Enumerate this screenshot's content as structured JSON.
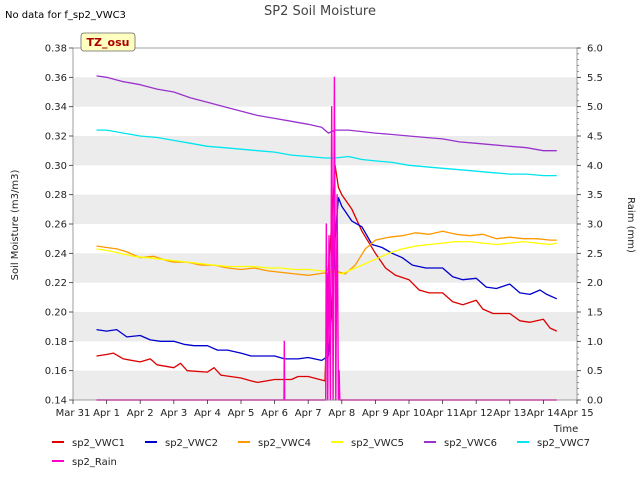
{
  "chart_data": {
    "type": "line",
    "title": "SP2 Soil Moisture",
    "note": "No data for f_sp2_VWC3",
    "badge": "TZ_osu",
    "xlabel": "Time",
    "ylabel": "Soil Moisture (m3/m3)",
    "y2label": "Raim (mm)",
    "x_ticks": [
      "Mar 31",
      "Apr 1",
      "Apr 2",
      "Apr 3",
      "Apr 4",
      "Apr 5",
      "Apr 6",
      "Apr 7",
      "Apr 8",
      "Apr 9",
      "Apr 10",
      "Apr 11",
      "Apr 12",
      "Apr 13",
      "Apr 14",
      "Apr 15"
    ],
    "xlim": [
      0,
      15
    ],
    "ylim": [
      0.14,
      0.38
    ],
    "y_ticks": [
      "0.14",
      "0.16",
      "0.18",
      "0.20",
      "0.22",
      "0.24",
      "0.26",
      "0.28",
      "0.30",
      "0.32",
      "0.34",
      "0.36",
      "0.38"
    ],
    "y2lim": [
      0.0,
      6.0
    ],
    "y2_ticks": [
      "0.0",
      "0.5",
      "1.0",
      "1.5",
      "2.0",
      "2.5",
      "3.0",
      "3.5",
      "4.0",
      "4.5",
      "5.0",
      "5.5",
      "6.0"
    ],
    "grid": "horizontal bands",
    "legend_position": "bottom",
    "series": [
      {
        "name": "sp2_VWC1",
        "color": "#dd0000",
        "axis": "left",
        "points": [
          [
            0.7,
            0.17
          ],
          [
            1.0,
            0.171
          ],
          [
            1.2,
            0.172
          ],
          [
            1.5,
            0.168
          ],
          [
            2.0,
            0.166
          ],
          [
            2.3,
            0.168
          ],
          [
            2.5,
            0.164
          ],
          [
            3.0,
            0.162
          ],
          [
            3.2,
            0.165
          ],
          [
            3.4,
            0.16
          ],
          [
            4.0,
            0.159
          ],
          [
            4.2,
            0.162
          ],
          [
            4.4,
            0.157
          ],
          [
            5.0,
            0.155
          ],
          [
            5.3,
            0.153
          ],
          [
            5.5,
            0.152
          ],
          [
            6.0,
            0.154
          ],
          [
            6.5,
            0.154
          ],
          [
            6.7,
            0.156
          ],
          [
            7.0,
            0.156
          ],
          [
            7.5,
            0.153
          ],
          [
            7.6,
            0.23
          ],
          [
            7.7,
            0.26
          ],
          [
            7.8,
            0.3
          ],
          [
            7.9,
            0.285
          ],
          [
            8.0,
            0.28
          ],
          [
            8.3,
            0.27
          ],
          [
            8.6,
            0.255
          ],
          [
            9.0,
            0.24
          ],
          [
            9.3,
            0.23
          ],
          [
            9.6,
            0.225
          ],
          [
            10.0,
            0.222
          ],
          [
            10.3,
            0.215
          ],
          [
            10.6,
            0.213
          ],
          [
            11.0,
            0.213
          ],
          [
            11.3,
            0.207
          ],
          [
            11.6,
            0.205
          ],
          [
            12.0,
            0.208
          ],
          [
            12.2,
            0.202
          ],
          [
            12.5,
            0.199
          ],
          [
            13.0,
            0.199
          ],
          [
            13.3,
            0.194
          ],
          [
            13.6,
            0.193
          ],
          [
            14.0,
            0.195
          ],
          [
            14.2,
            0.189
          ],
          [
            14.4,
            0.187
          ]
        ]
      },
      {
        "name": "sp2_VWC2",
        "color": "#0000cc",
        "axis": "left",
        "points": [
          [
            0.7,
            0.188
          ],
          [
            1.0,
            0.187
          ],
          [
            1.3,
            0.188
          ],
          [
            1.6,
            0.183
          ],
          [
            2.0,
            0.184
          ],
          [
            2.3,
            0.181
          ],
          [
            2.6,
            0.18
          ],
          [
            3.0,
            0.18
          ],
          [
            3.3,
            0.178
          ],
          [
            3.6,
            0.177
          ],
          [
            4.0,
            0.177
          ],
          [
            4.3,
            0.174
          ],
          [
            4.6,
            0.174
          ],
          [
            5.0,
            0.172
          ],
          [
            5.3,
            0.17
          ],
          [
            5.6,
            0.17
          ],
          [
            6.0,
            0.17
          ],
          [
            6.3,
            0.168
          ],
          [
            6.7,
            0.168
          ],
          [
            7.0,
            0.169
          ],
          [
            7.4,
            0.167
          ],
          [
            7.6,
            0.17
          ],
          [
            7.7,
            0.2
          ],
          [
            7.8,
            0.25
          ],
          [
            7.9,
            0.278
          ],
          [
            8.0,
            0.272
          ],
          [
            8.3,
            0.262
          ],
          [
            8.6,
            0.258
          ],
          [
            8.9,
            0.246
          ],
          [
            9.2,
            0.244
          ],
          [
            9.5,
            0.24
          ],
          [
            9.8,
            0.237
          ],
          [
            10.1,
            0.232
          ],
          [
            10.5,
            0.23
          ],
          [
            11.0,
            0.23
          ],
          [
            11.3,
            0.224
          ],
          [
            11.6,
            0.222
          ],
          [
            12.0,
            0.223
          ],
          [
            12.3,
            0.217
          ],
          [
            12.6,
            0.216
          ],
          [
            13.0,
            0.219
          ],
          [
            13.3,
            0.213
          ],
          [
            13.6,
            0.212
          ],
          [
            13.9,
            0.215
          ],
          [
            14.1,
            0.212
          ],
          [
            14.4,
            0.209
          ]
        ]
      },
      {
        "name": "sp2_VWC4",
        "color": "#ff9900",
        "axis": "left",
        "points": [
          [
            0.7,
            0.245
          ],
          [
            1.0,
            0.244
          ],
          [
            1.3,
            0.243
          ],
          [
            1.6,
            0.241
          ],
          [
            2.0,
            0.237
          ],
          [
            2.4,
            0.238
          ],
          [
            2.8,
            0.235
          ],
          [
            3.0,
            0.234
          ],
          [
            3.4,
            0.234
          ],
          [
            3.8,
            0.232
          ],
          [
            4.2,
            0.232
          ],
          [
            4.6,
            0.23
          ],
          [
            5.0,
            0.229
          ],
          [
            5.4,
            0.23
          ],
          [
            5.8,
            0.228
          ],
          [
            6.2,
            0.227
          ],
          [
            6.6,
            0.226
          ],
          [
            7.0,
            0.225
          ],
          [
            7.3,
            0.226
          ],
          [
            7.6,
            0.227
          ],
          [
            7.8,
            0.228
          ],
          [
            8.1,
            0.226
          ],
          [
            8.4,
            0.232
          ],
          [
            8.7,
            0.243
          ],
          [
            9.0,
            0.249
          ],
          [
            9.4,
            0.251
          ],
          [
            9.8,
            0.252
          ],
          [
            10.2,
            0.254
          ],
          [
            10.6,
            0.253
          ],
          [
            11.0,
            0.255
          ],
          [
            11.4,
            0.253
          ],
          [
            11.8,
            0.252
          ],
          [
            12.2,
            0.253
          ],
          [
            12.6,
            0.25
          ],
          [
            13.0,
            0.251
          ],
          [
            13.4,
            0.25
          ],
          [
            13.8,
            0.25
          ],
          [
            14.2,
            0.249
          ],
          [
            14.4,
            0.249
          ]
        ]
      },
      {
        "name": "sp2_VWC5",
        "color": "#ffff00",
        "axis": "left",
        "points": [
          [
            0.7,
            0.243
          ],
          [
            1.0,
            0.242
          ],
          [
            1.4,
            0.24
          ],
          [
            1.8,
            0.238
          ],
          [
            2.2,
            0.237
          ],
          [
            2.6,
            0.236
          ],
          [
            3.0,
            0.235
          ],
          [
            3.4,
            0.234
          ],
          [
            3.8,
            0.233
          ],
          [
            4.2,
            0.232
          ],
          [
            4.6,
            0.231
          ],
          [
            5.0,
            0.231
          ],
          [
            5.4,
            0.231
          ],
          [
            5.8,
            0.23
          ],
          [
            6.2,
            0.23
          ],
          [
            6.6,
            0.229
          ],
          [
            7.0,
            0.229
          ],
          [
            7.4,
            0.228
          ],
          [
            7.8,
            0.227
          ],
          [
            8.0,
            0.226
          ],
          [
            8.3,
            0.229
          ],
          [
            8.6,
            0.232
          ],
          [
            9.0,
            0.236
          ],
          [
            9.4,
            0.24
          ],
          [
            9.8,
            0.243
          ],
          [
            10.2,
            0.245
          ],
          [
            10.6,
            0.246
          ],
          [
            11.0,
            0.247
          ],
          [
            11.4,
            0.248
          ],
          [
            11.8,
            0.248
          ],
          [
            12.2,
            0.247
          ],
          [
            12.6,
            0.246
          ],
          [
            13.0,
            0.247
          ],
          [
            13.4,
            0.248
          ],
          [
            13.8,
            0.247
          ],
          [
            14.2,
            0.246
          ],
          [
            14.4,
            0.247
          ]
        ]
      },
      {
        "name": "sp2_VWC6",
        "color": "#9933cc",
        "axis": "left",
        "points": [
          [
            0.7,
            0.361
          ],
          [
            1.0,
            0.36
          ],
          [
            1.5,
            0.357
          ],
          [
            2.0,
            0.355
          ],
          [
            2.5,
            0.352
          ],
          [
            3.0,
            0.35
          ],
          [
            3.5,
            0.346
          ],
          [
            4.0,
            0.343
          ],
          [
            4.5,
            0.34
          ],
          [
            5.0,
            0.337
          ],
          [
            5.5,
            0.334
          ],
          [
            6.0,
            0.332
          ],
          [
            6.5,
            0.33
          ],
          [
            7.0,
            0.328
          ],
          [
            7.4,
            0.326
          ],
          [
            7.6,
            0.322
          ],
          [
            7.8,
            0.324
          ],
          [
            8.2,
            0.324
          ],
          [
            8.6,
            0.323
          ],
          [
            9.0,
            0.322
          ],
          [
            9.5,
            0.321
          ],
          [
            10.0,
            0.32
          ],
          [
            10.5,
            0.319
          ],
          [
            11.0,
            0.318
          ],
          [
            11.5,
            0.316
          ],
          [
            12.0,
            0.315
          ],
          [
            12.5,
            0.314
          ],
          [
            13.0,
            0.313
          ],
          [
            13.5,
            0.312
          ],
          [
            14.0,
            0.31
          ],
          [
            14.4,
            0.31
          ]
        ]
      },
      {
        "name": "sp2_VWC7",
        "color": "#00e5ee",
        "axis": "left",
        "points": [
          [
            0.7,
            0.324
          ],
          [
            1.0,
            0.324
          ],
          [
            1.5,
            0.322
          ],
          [
            2.0,
            0.32
          ],
          [
            2.5,
            0.319
          ],
          [
            3.0,
            0.317
          ],
          [
            3.5,
            0.315
          ],
          [
            4.0,
            0.313
          ],
          [
            4.5,
            0.312
          ],
          [
            5.0,
            0.311
          ],
          [
            5.5,
            0.31
          ],
          [
            6.0,
            0.309
          ],
          [
            6.5,
            0.307
          ],
          [
            7.0,
            0.306
          ],
          [
            7.5,
            0.305
          ],
          [
            7.8,
            0.305
          ],
          [
            8.2,
            0.306
          ],
          [
            8.6,
            0.304
          ],
          [
            9.0,
            0.303
          ],
          [
            9.5,
            0.302
          ],
          [
            10.0,
            0.3
          ],
          [
            10.5,
            0.299
          ],
          [
            11.0,
            0.298
          ],
          [
            11.5,
            0.297
          ],
          [
            12.0,
            0.296
          ],
          [
            12.5,
            0.295
          ],
          [
            13.0,
            0.294
          ],
          [
            13.5,
            0.294
          ],
          [
            14.0,
            0.293
          ],
          [
            14.4,
            0.293
          ]
        ]
      },
      {
        "name": "sp2_Rain",
        "color": "#ff00cc",
        "axis": "right",
        "points": [
          [
            0.7,
            0.0
          ],
          [
            6.28,
            0.0
          ],
          [
            6.29,
            1.0
          ],
          [
            6.3,
            0.0
          ],
          [
            7.52,
            0.0
          ],
          [
            7.54,
            3.0
          ],
          [
            7.58,
            0.0
          ],
          [
            7.62,
            2.8
          ],
          [
            7.66,
            0.0
          ],
          [
            7.7,
            5.0
          ],
          [
            7.74,
            0.0
          ],
          [
            7.78,
            5.5
          ],
          [
            7.82,
            0.0
          ],
          [
            7.86,
            3.5
          ],
          [
            7.9,
            0.0
          ],
          [
            7.92,
            0.5
          ],
          [
            7.94,
            0.0
          ],
          [
            14.4,
            0.0
          ]
        ]
      }
    ]
  }
}
